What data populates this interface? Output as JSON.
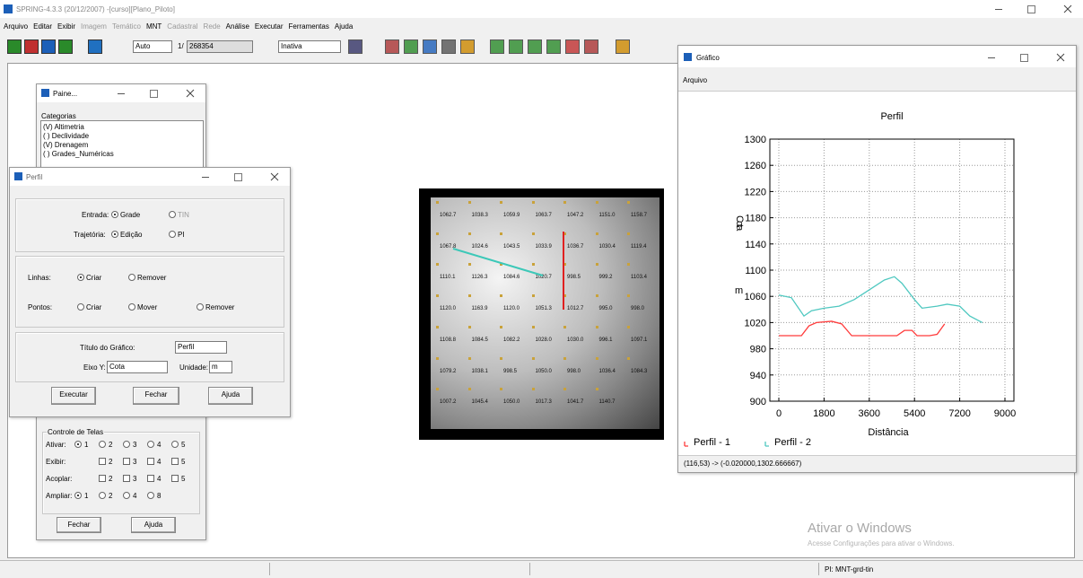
{
  "window": {
    "title": "SPRING-4.3.3 (20/12/2007) -[curso][Plano_Piloto]",
    "menu": [
      {
        "label": "Arquivo",
        "enabled": true
      },
      {
        "label": "Editar",
        "enabled": true
      },
      {
        "label": "Exibir",
        "enabled": true
      },
      {
        "label": "Imagem",
        "enabled": false
      },
      {
        "label": "Temático",
        "enabled": false
      },
      {
        "label": "MNT",
        "enabled": true
      },
      {
        "label": "Cadastral",
        "enabled": false
      },
      {
        "label": "Rede",
        "enabled": false
      },
      {
        "label": "Análise",
        "enabled": true
      },
      {
        "label": "Executar",
        "enabled": true
      },
      {
        "label": "Ferramentas",
        "enabled": true
      },
      {
        "label": "Ajuda",
        "enabled": true
      }
    ],
    "toolbar": {
      "zoom_mode": "Auto",
      "scale_prefix": "1/",
      "scale": "268354",
      "mode": "Inativa"
    }
  },
  "painel": {
    "title": "Paine...",
    "categories_label": "Categorias",
    "categories": [
      "(V) Altimetria",
      "( ) Declividade",
      "(V) Drenagem",
      "( ) Grades_Numéricas"
    ],
    "controle": {
      "title": "Controle de Telas",
      "rows": [
        {
          "label": "Ativar:",
          "kind": "radio",
          "options": [
            "1",
            "2",
            "3",
            "4",
            "5"
          ]
        },
        {
          "label": "Exibir:",
          "kind": "check",
          "options": [
            "2",
            "3",
            "4",
            "5"
          ]
        },
        {
          "label": "Acoplar:",
          "kind": "check",
          "options": [
            "2",
            "3",
            "4",
            "5"
          ]
        },
        {
          "label": "Ampliar:",
          "kind": "radio",
          "options": [
            "1",
            "2",
            "4",
            "8"
          ]
        }
      ],
      "buttons": [
        "Fechar",
        "Ajuda"
      ]
    }
  },
  "perfil": {
    "title": "Perfil",
    "entrada_label": "Entrada:",
    "entrada_options": [
      "Grade",
      "TIN"
    ],
    "trajetoria_label": "Trajetória:",
    "trajetoria_options": [
      "Edição",
      "PI"
    ],
    "linhas_label": "Linhas:",
    "linhas_options": [
      "Criar",
      "Remover"
    ],
    "pontos_label": "Pontos:",
    "pontos_options": [
      "Criar",
      "Mover",
      "Remover"
    ],
    "titulo_label": "Título do Gráfico:",
    "titulo_value": "Perfil",
    "eixo_label": "Eixo Y:",
    "eixo_value": "Cota",
    "unidade_label": "Unidade:",
    "unidade_value": "m",
    "buttons": [
      "Executar",
      "Fechar",
      "Ajuda"
    ]
  },
  "map": {
    "grid_labels": [
      [
        "1062.7",
        "1038.3",
        "1059.9",
        "1063.7",
        "1047.2",
        "1151.0",
        "1158.7"
      ],
      [
        "1067.8",
        "1024.6",
        "1043.5",
        "1033.9",
        "1036.7",
        "1030.4",
        "1119.4"
      ],
      [
        "1110.1",
        "1126.3",
        "1084.6",
        "1020.7",
        "998.5",
        "999.2",
        "1103.4"
      ],
      [
        "1120.0",
        "1163.9",
        "1120.0",
        "1051.3",
        "1012.7",
        "995.0",
        "998.0"
      ],
      [
        "1108.8",
        "1084.5",
        "1082.2",
        "1028.0",
        "1030.0",
        "996.1",
        "1097.1"
      ],
      [
        "1079.2",
        "1038.1",
        "998.5",
        "1050.0",
        "998.0",
        "1036.4",
        "1084.3"
      ],
      [
        "1007.2",
        "1045.4",
        "1050.0",
        "1017.3",
        "1041.7",
        "1140.7"
      ]
    ]
  },
  "grafico": {
    "title": "Gráfico",
    "menu": "Arquivo",
    "chart_data": {
      "type": "line",
      "title": "Perfil",
      "xlabel": "Distância",
      "ylabel": "Cota",
      "yunit": "m",
      "xlim": [
        0,
        9000
      ],
      "ylim": [
        900,
        1300
      ],
      "xticks": [
        0,
        1800,
        3600,
        5400,
        7200,
        9000
      ],
      "yticks": [
        900,
        940,
        980,
        1020,
        1060,
        1100,
        1140,
        1180,
        1220,
        1260,
        1300
      ],
      "grid": true,
      "legend": "bottom-left",
      "series": [
        {
          "name": "Perfil - 1",
          "color": "#ff3b3b",
          "x": [
            0,
            900,
            1200,
            1500,
            2100,
            2500,
            2900,
            3500,
            4100,
            4700,
            5000,
            5300,
            5500,
            6000,
            6300,
            6600
          ],
          "values": [
            1000,
            1000,
            1015,
            1020,
            1022,
            1018,
            1000,
            1000,
            1000,
            1000,
            1008,
            1008,
            1000,
            1000,
            1002,
            1018
          ]
        },
        {
          "name": "Perfil - 2",
          "color": "#4fc8c0",
          "x": [
            0,
            500,
            1000,
            1300,
            1800,
            2400,
            3000,
            3600,
            4200,
            4600,
            4900,
            5400,
            5700,
            6300,
            6700,
            7200,
            7600,
            8100
          ],
          "values": [
            1062,
            1058,
            1030,
            1038,
            1042,
            1045,
            1055,
            1070,
            1085,
            1090,
            1080,
            1055,
            1042,
            1045,
            1048,
            1045,
            1030,
            1020
          ]
        }
      ]
    },
    "status": "(116,53) -> (-0.020000,1302.666667)"
  },
  "watermark": {
    "title": "Ativar o Windows",
    "text": "Acesse Configurações para ativar o Windows."
  },
  "statusbar": "PI: MNT-grd-tin"
}
